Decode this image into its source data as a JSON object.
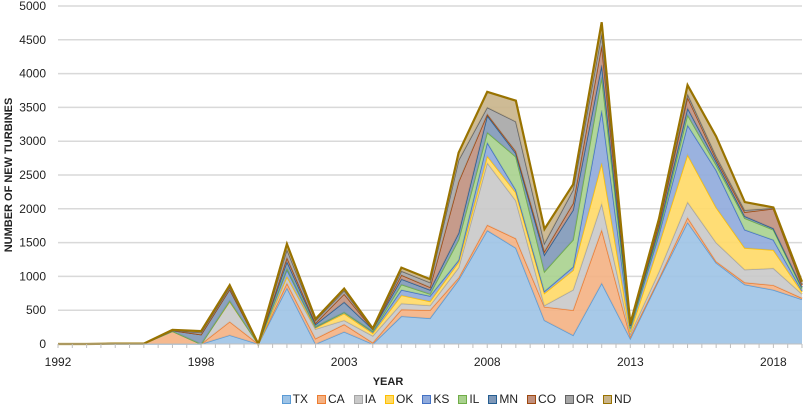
{
  "chart_data": {
    "type": "area",
    "stacked": true,
    "title": "",
    "xlabel": "YEAR",
    "ylabel": "NUMBER OF NEW TURBINES",
    "ylim": [
      0,
      5000
    ],
    "yticks": [
      0,
      500,
      1000,
      1500,
      2000,
      2500,
      3000,
      3500,
      4000,
      4500,
      5000
    ],
    "x_tick_labels": [
      "1992",
      "1998",
      "2003",
      "2008",
      "2013",
      "2018"
    ],
    "x_tick_label_category_index": [
      0,
      5,
      10,
      15,
      20,
      25
    ],
    "category_count": 27,
    "grid": "horizontal",
    "legend_position": "bottom",
    "series": [
      {
        "name": "TX",
        "fill": "#9dc3e6",
        "line": "#5b9bd5",
        "values": [
          0,
          0,
          0,
          0,
          0,
          0,
          130,
          0,
          830,
          0,
          180,
          0,
          410,
          380,
          950,
          1680,
          1420,
          350,
          130,
          900,
          80,
          950,
          1800,
          1200,
          880,
          800,
          660
        ]
      },
      {
        "name": "CA",
        "fill": "#f4b183",
        "line": "#ed7d31",
        "values": [
          0,
          0,
          5,
          5,
          190,
          0,
          200,
          0,
          70,
          80,
          110,
          20,
          100,
          120,
          30,
          80,
          140,
          200,
          370,
          790,
          30,
          20,
          70,
          20,
          30,
          70,
          20
        ]
      },
      {
        "name": "IA",
        "fill": "#c9c9c9",
        "line": "#a5a5a5",
        "values": [
          0,
          0,
          0,
          0,
          0,
          0,
          300,
          0,
          100,
          140,
          60,
          100,
          90,
          70,
          150,
          920,
          560,
          20,
          300,
          390,
          40,
          100,
          230,
          280,
          190,
          250,
          60
        ]
      },
      {
        "name": "OK",
        "fill": "#ffd966",
        "line": "#ffc000",
        "values": [
          0,
          0,
          0,
          0,
          0,
          0,
          0,
          0,
          0,
          20,
          100,
          40,
          120,
          60,
          80,
          100,
          120,
          180,
          290,
          600,
          30,
          400,
          700,
          520,
          320,
          270,
          30
        ]
      },
      {
        "name": "KS",
        "fill": "#8faadc",
        "line": "#4472c4",
        "values": [
          0,
          0,
          0,
          0,
          0,
          0,
          10,
          0,
          100,
          10,
          20,
          20,
          80,
          80,
          30,
          200,
          40,
          30,
          50,
          780,
          50,
          150,
          440,
          550,
          270,
          150,
          20
        ]
      },
      {
        "name": "IL",
        "fill": "#a9d18e",
        "line": "#70ad47",
        "values": [
          0,
          0,
          0,
          0,
          0,
          0,
          0,
          0,
          20,
          10,
          0,
          10,
          80,
          30,
          300,
          150,
          490,
          290,
          400,
          490,
          10,
          50,
          150,
          80,
          170,
          150,
          30
        ]
      },
      {
        "name": "MN",
        "fill": "#7f98b8",
        "line": "#255e91",
        "values": [
          0,
          0,
          0,
          0,
          10,
          140,
          170,
          0,
          100,
          30,
          150,
          30,
          80,
          60,
          100,
          250,
          50,
          250,
          440,
          180,
          30,
          50,
          100,
          50,
          30,
          20,
          20
        ]
      },
      {
        "name": "CO",
        "fill": "#c0907e",
        "line": "#9e480e",
        "values": [
          0,
          0,
          0,
          0,
          0,
          0,
          0,
          0,
          60,
          20,
          120,
          0,
          60,
          40,
          760,
          20,
          30,
          50,
          100,
          290,
          10,
          60,
          160,
          40,
          60,
          290,
          30
        ]
      },
      {
        "name": "OR",
        "fill": "#a6a6a6",
        "line": "#636363",
        "values": [
          0,
          0,
          0,
          0,
          0,
          30,
          30,
          0,
          120,
          40,
          50,
          0,
          60,
          70,
          320,
          100,
          440,
          120,
          200,
          180,
          10,
          40,
          50,
          40,
          30,
          10,
          20
        ]
      },
      {
        "name": "ND",
        "fill": "#c9b48a",
        "line": "#997300",
        "values": [
          0,
          0,
          0,
          0,
          10,
          20,
          30,
          0,
          80,
          20,
          30,
          10,
          50,
          50,
          110,
          230,
          310,
          210,
          80,
          160,
          10,
          30,
          130,
          290,
          120,
          10,
          30
        ]
      }
    ]
  }
}
